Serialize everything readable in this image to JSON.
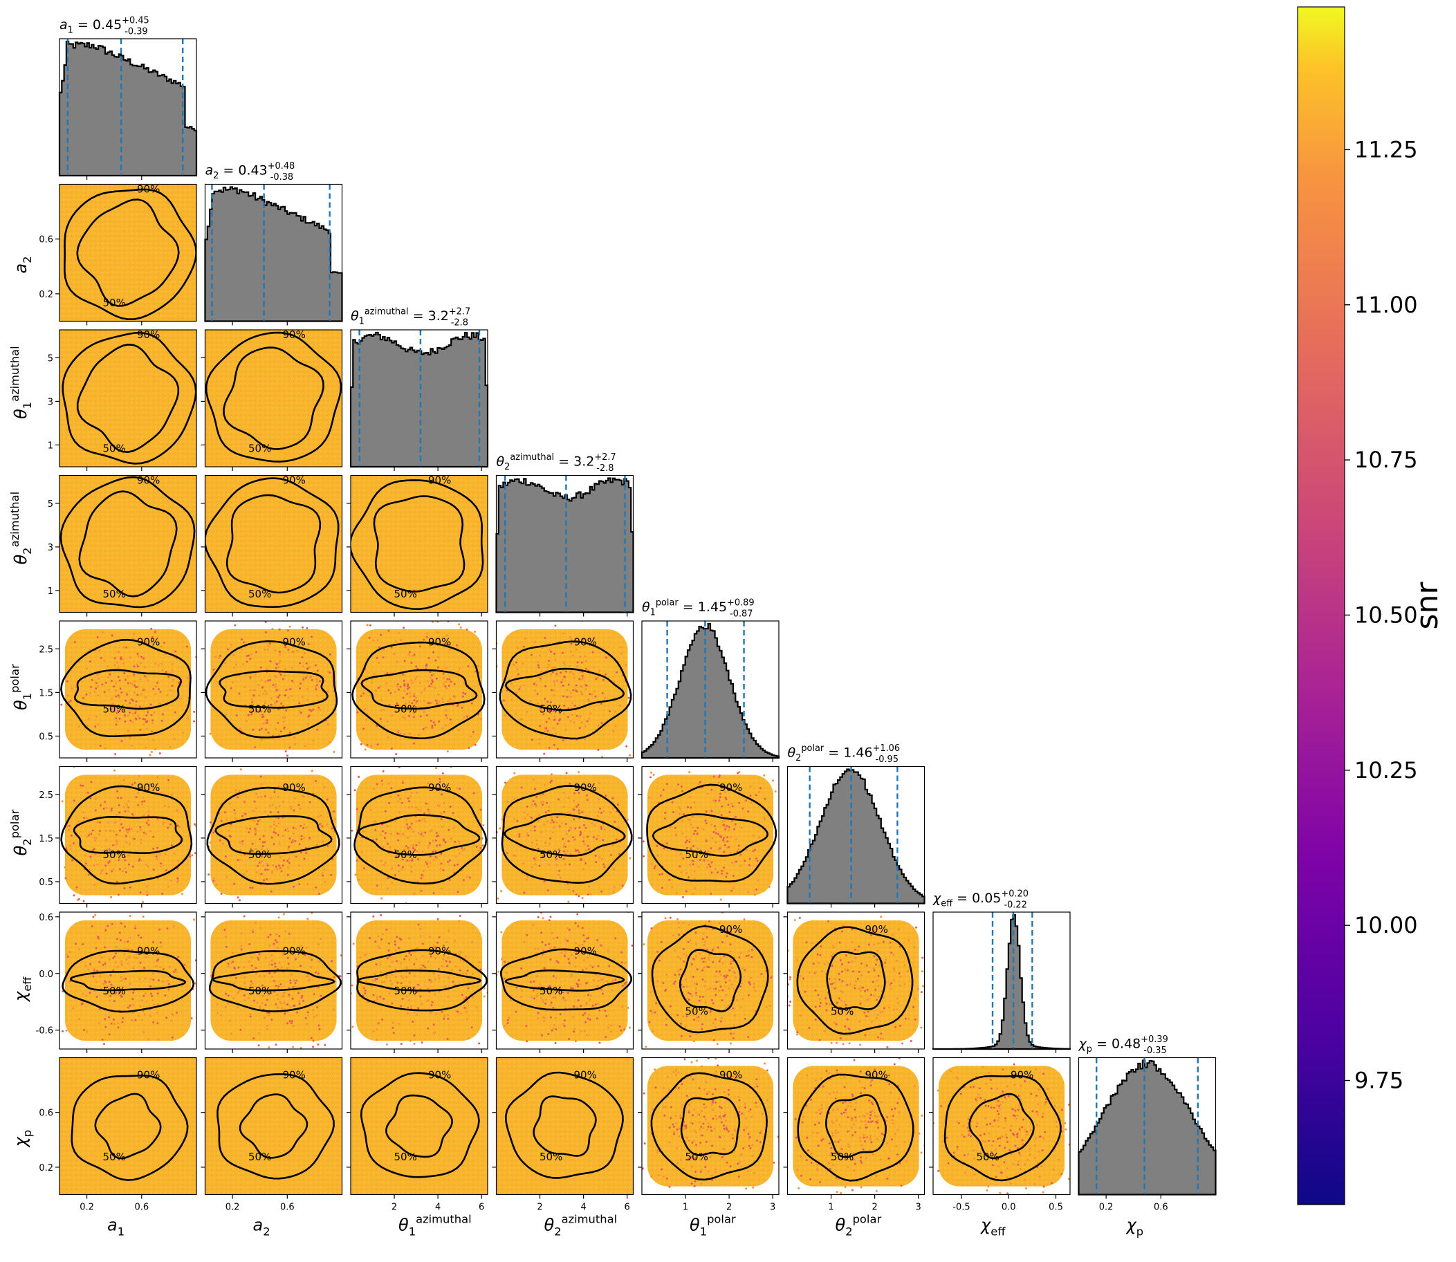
{
  "chart_data": {
    "type": "corner",
    "parameters": [
      {
        "key": "a1",
        "axis_label": "a_1",
        "title": "a_1 = 0.45^{+0.45}_{-0.39}",
        "median": 0.45,
        "plus": 0.45,
        "minus": 0.39,
        "range": [
          0.0,
          1.0
        ],
        "ticks": [
          0.2,
          0.6
        ],
        "hist_shape": "flat_decreasing"
      },
      {
        "key": "a2",
        "axis_label": "a_2",
        "title": "a_2 = 0.43^{+0.48}_{-0.38}",
        "median": 0.43,
        "plus": 0.48,
        "minus": 0.38,
        "range": [
          0.0,
          1.0
        ],
        "ticks": [
          0.2,
          0.6
        ],
        "hist_shape": "flat_decreasing"
      },
      {
        "key": "theta1_az",
        "axis_label": "θ_1^azimuthal",
        "title": "θ_1^azimuthal = 3.2^{+2.7}_{-2.8}",
        "median": 3.2,
        "plus": 2.7,
        "minus": 2.8,
        "range": [
          0.0,
          6.28
        ],
        "ticks": [
          2,
          4,
          6
        ],
        "yticks": [
          1,
          3,
          5
        ],
        "hist_shape": "uniform"
      },
      {
        "key": "theta2_az",
        "axis_label": "θ_2^azimuthal",
        "title": "θ_2^azimuthal = 3.2^{+2.7}_{-2.8}",
        "median": 3.2,
        "plus": 2.7,
        "minus": 2.8,
        "range": [
          0.0,
          6.28
        ],
        "ticks": [
          2,
          4,
          6
        ],
        "yticks": [
          1,
          3,
          5
        ],
        "hist_shape": "uniform"
      },
      {
        "key": "theta1_pol",
        "axis_label": "θ_1^polar",
        "title": "θ_1^polar = 1.45^{+0.89}_{-0.87}",
        "median": 1.45,
        "plus": 0.89,
        "minus": 0.87,
        "range": [
          0.0,
          3.14
        ],
        "ticks": [
          1,
          2,
          3
        ],
        "yticks": [
          0.5,
          1.5,
          2.5
        ],
        "hist_shape": "gaussian"
      },
      {
        "key": "theta2_pol",
        "axis_label": "θ_2^polar",
        "title": "θ_2^polar = 1.46^{+1.06}_{-0.95}",
        "median": 1.46,
        "plus": 1.06,
        "minus": 0.95,
        "range": [
          0.0,
          3.14
        ],
        "ticks": [
          1,
          2,
          3
        ],
        "yticks": [
          0.5,
          1.5,
          2.5
        ],
        "hist_shape": "gaussian_wide"
      },
      {
        "key": "chi_eff",
        "axis_label": "χ_eff",
        "title": "χ_eff = 0.05^{+0.20}_{-0.22}",
        "median": 0.05,
        "plus": 0.2,
        "minus": 0.22,
        "range": [
          -0.8,
          0.65
        ],
        "ticks": [
          -0.5,
          0.0,
          0.5
        ],
        "yticks": [
          -0.6,
          0.0,
          0.6
        ],
        "hist_shape": "peaked"
      },
      {
        "key": "chi_p",
        "axis_label": "χ_p",
        "title": "χ_p = 0.48^{+0.39}_{-0.35}",
        "median": 0.48,
        "plus": 0.39,
        "minus": 0.35,
        "range": [
          0.0,
          1.0
        ],
        "ticks": [
          0.2,
          0.6
        ],
        "yticks": [
          0.2,
          0.6
        ],
        "hist_shape": "broad"
      }
    ],
    "contour_levels": [
      "50%",
      "90%"
    ],
    "colorbar": {
      "label": "snr",
      "range": [
        9.55,
        11.48
      ],
      "ticks": [
        9.75,
        10.0,
        10.25,
        10.5,
        10.75,
        11.0,
        11.25
      ],
      "tick_labels": [
        "9.75",
        "10.00",
        "10.25",
        "10.50",
        "10.75",
        "11.00",
        "11.25"
      ],
      "colormap": "plasma"
    },
    "colors": {
      "hist_fill": "#808080",
      "hist_edge": "#000000",
      "quantile_line": "#1f77b4",
      "contour": "#000000",
      "scatter_main": "#fbb42f",
      "scatter_edge": "#e65a5a"
    }
  }
}
